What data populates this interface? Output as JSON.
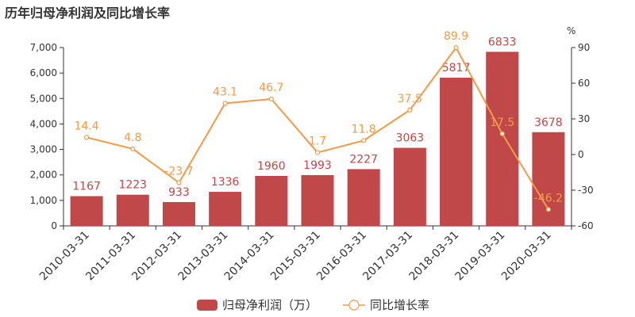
{
  "chart_data": {
    "type": "bar",
    "title": "历年归母净利润及同比增长率",
    "categories": [
      "2010-03-31",
      "2011-03-31",
      "2012-03-31",
      "2013-03-31",
      "2014-03-31",
      "2015-03-31",
      "2016-03-31",
      "2017-03-31",
      "2018-03-31",
      "2019-03-31",
      "2020-03-31"
    ],
    "series": [
      {
        "name": "归母净利润（万）",
        "type": "bar",
        "axis": "left",
        "color": "#c04848",
        "values": [
          1167,
          1223,
          933,
          1336,
          1960,
          1993,
          2227,
          3063,
          5817,
          6833,
          3678
        ],
        "labels": [
          "1167",
          "1223",
          "933",
          "1336",
          "1960",
          "1993",
          "2227",
          "3063",
          "5817",
          "6833",
          "3678"
        ]
      },
      {
        "name": "同比增长率",
        "type": "line",
        "axis": "right",
        "color": "#f29b49",
        "values": [
          14.4,
          4.8,
          -23.7,
          43.1,
          46.7,
          1.7,
          11.8,
          37.5,
          89.9,
          17.5,
          -46.2
        ],
        "labels": [
          "14.4",
          "4.8",
          "-23.7",
          "43.1",
          "46.7",
          "1.7",
          "11.8",
          "37.5",
          "89.9",
          "17.5",
          "-46.2"
        ]
      }
    ],
    "y_left": {
      "min": 0,
      "max": 7000,
      "ticks": [
        0,
        1000,
        2000,
        3000,
        4000,
        5000,
        6000,
        7000
      ],
      "tick_labels": [
        "0",
        "1,000",
        "2,000",
        "3,000",
        "4,000",
        "5,000",
        "6,000",
        "7,000"
      ]
    },
    "y_right": {
      "min": -60,
      "max": 90,
      "ticks": [
        -60,
        -30,
        0,
        30,
        60,
        90
      ],
      "tick_labels": [
        "-60",
        "-30",
        "0",
        "30",
        "60",
        "90"
      ],
      "unit": "%"
    },
    "grid": false,
    "legend": "bottom-center"
  }
}
